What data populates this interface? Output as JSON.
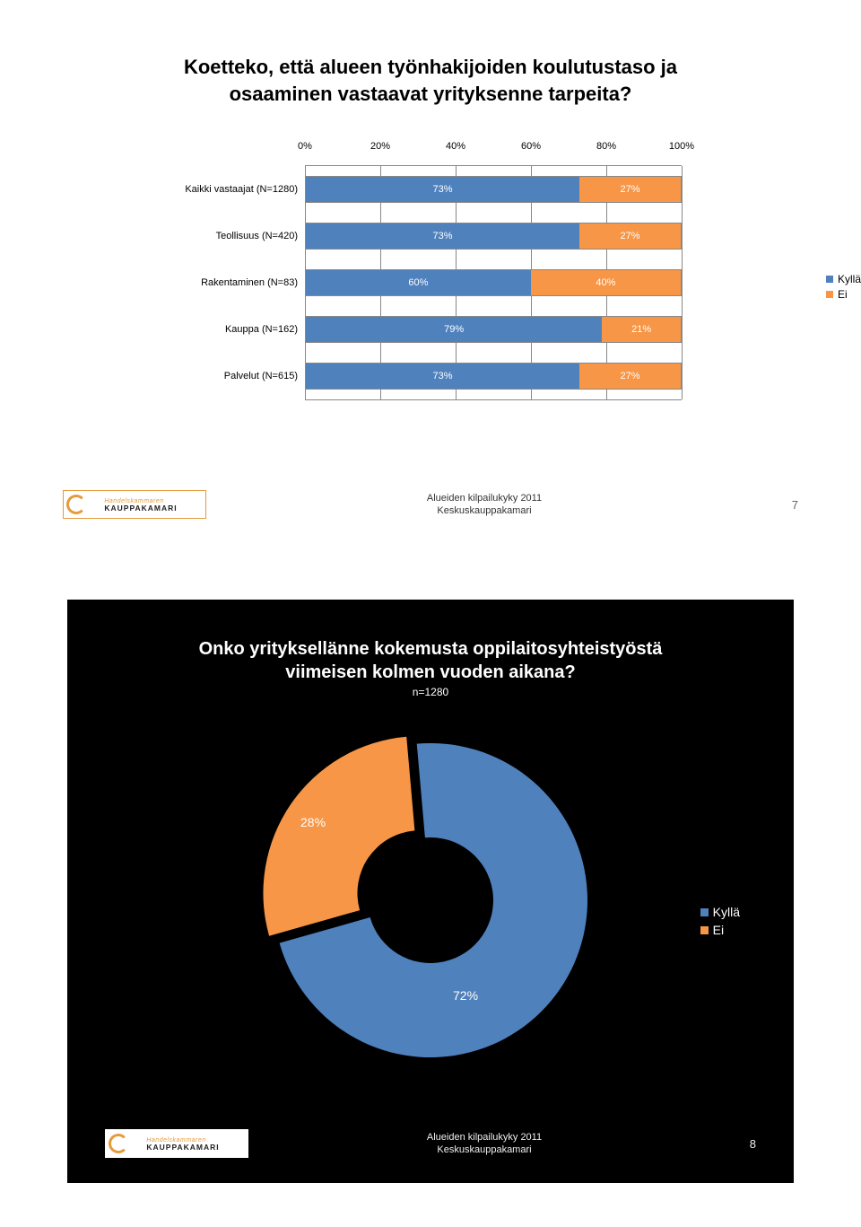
{
  "colors": {
    "kylla": "#4f81bd",
    "ei": "#f79646",
    "grid": "#888888",
    "white": "#ffffff",
    "black": "#000000"
  },
  "slide1": {
    "title_l1": "Koetteko, että alueen työnhakijoiden koulutustaso ja",
    "title_l2": "osaaminen vastaavat yrityksenne tarpeita?",
    "title_fontsize": 22,
    "axis": {
      "min": 0,
      "max": 100,
      "step": 20,
      "ticks": [
        "0%",
        "20%",
        "40%",
        "60%",
        "80%",
        "100%"
      ]
    },
    "legend": [
      {
        "label": "Kyllä",
        "color": "#4f81bd"
      },
      {
        "label": "Ei",
        "color": "#f79646"
      }
    ],
    "rows": [
      {
        "label": "Kaikki vastaajat (N=1280)",
        "kylla": 73,
        "ei": 27
      },
      {
        "label": "Teollisuus (N=420)",
        "kylla": 73,
        "ei": 27
      },
      {
        "label": "Rakentaminen (N=83)",
        "kylla": 60,
        "ei": 40
      },
      {
        "label": "Kauppa (N=162)",
        "kylla": 79,
        "ei": 21
      },
      {
        "label": "Palvelut (N=615)",
        "kylla": 73,
        "ei": 27
      }
    ],
    "footer": {
      "line1": "Alueiden kilpailukyky 2011",
      "line2": "Keskuskauppakamari",
      "page": "7"
    },
    "logo": {
      "line1": "Handelskammaren",
      "line2": "KAUPPAKAMARI"
    }
  },
  "slide2": {
    "title_l1": "Onko yrityksellänne kokemusta oppilaitosyhteistyöstä",
    "title_l2": "viimeisen kolmen vuoden aikana?",
    "subtitle": "n=1280",
    "title_fontsize": 20,
    "donut": {
      "kylla_pct": 72,
      "ei_pct": 28,
      "kylla_color": "#4f81bd",
      "ei_color": "#f79646",
      "inner_color": "#000000",
      "explode_gap": 14,
      "outer_r": 175,
      "inner_r": 70
    },
    "labels": {
      "kylla": "72%",
      "ei": "28%"
    },
    "legend": [
      {
        "label": "Kyllä",
        "color": "#4f81bd"
      },
      {
        "label": "Ei",
        "color": "#f79646"
      }
    ],
    "footer": {
      "line1": "Alueiden kilpailukyky 2011",
      "line2": "Keskuskauppakamari",
      "page": "8"
    },
    "logo": {
      "line1": "Handelskammaren",
      "line2": "KAUPPAKAMARI"
    }
  }
}
